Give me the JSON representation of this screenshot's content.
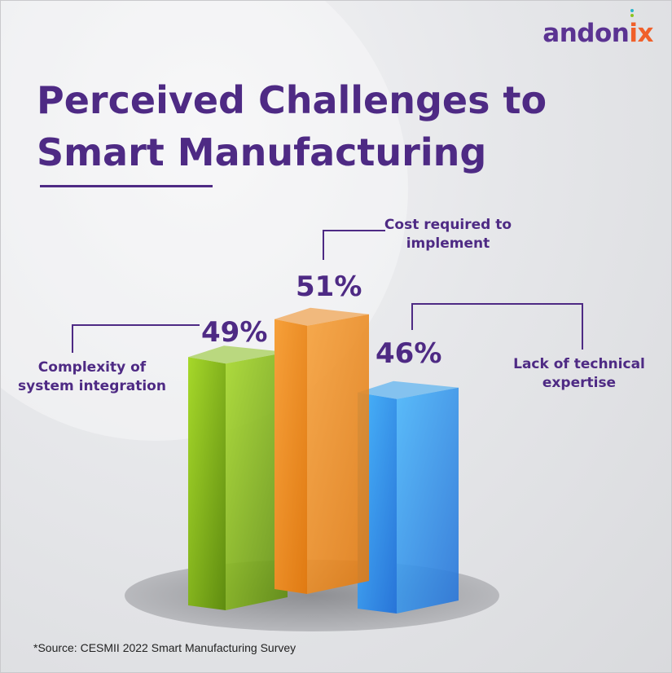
{
  "brand": {
    "logo_text": "andonix"
  },
  "header": {
    "title_line1": "Perceived Challenges to",
    "title_line2": "Smart Manufacturing"
  },
  "footer": {
    "source": "*Source: CESMII 2022 Smart Manufacturing Survey"
  },
  "colors": {
    "title": "#4e2a84",
    "accent": "#f0602a"
  },
  "chart_data": {
    "type": "bar",
    "title": "Perceived Challenges to Smart Manufacturing",
    "categories": [
      "Complexity of system integration",
      "Cost required to implement",
      "Lack of technical expertise"
    ],
    "values": [
      49,
      51,
      46
    ],
    "value_labels": [
      "49%",
      "51%",
      "46%"
    ],
    "label_lines": [
      [
        "Complexity of",
        "system integration"
      ],
      [
        "Cost required to",
        "implement"
      ],
      [
        "Lack of technical",
        "expertise"
      ]
    ],
    "colors": [
      "#8cc31f",
      "#f08a1c",
      "#33a4f2"
    ],
    "xlabel": "",
    "ylabel": "",
    "unit": "%"
  }
}
